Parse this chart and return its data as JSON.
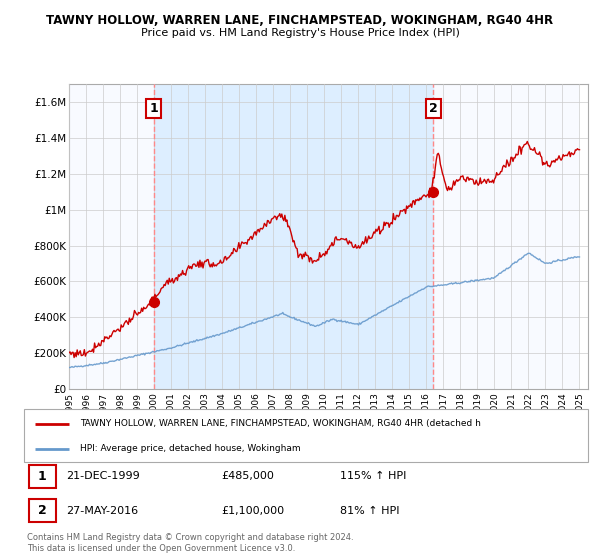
{
  "title": "TAWNY HOLLOW, WARREN LANE, FINCHAMPSTEAD, WOKINGHAM, RG40 4HR",
  "subtitle": "Price paid vs. HM Land Registry's House Price Index (HPI)",
  "ylim": [
    0,
    1700000
  ],
  "xlim_start": 1995.0,
  "xlim_end": 2025.5,
  "yticks": [
    0,
    200000,
    400000,
    600000,
    800000,
    1000000,
    1200000,
    1400000,
    1600000
  ],
  "ytick_labels": [
    "£0",
    "£200K",
    "£400K",
    "£600K",
    "£800K",
    "£1M",
    "£1.2M",
    "£1.4M",
    "£1.6M"
  ],
  "xtick_years": [
    1995,
    1996,
    1997,
    1998,
    1999,
    2000,
    2001,
    2002,
    2003,
    2004,
    2005,
    2006,
    2007,
    2008,
    2009,
    2010,
    2011,
    2012,
    2013,
    2014,
    2015,
    2016,
    2017,
    2018,
    2019,
    2020,
    2021,
    2022,
    2023,
    2024,
    2025
  ],
  "sale1_x": 1999.97,
  "sale1_y": 485000,
  "sale1_label": "1",
  "sale2_x": 2016.4,
  "sale2_y": 1100000,
  "sale2_label": "2",
  "red_line_color": "#cc0000",
  "blue_line_color": "#6699cc",
  "dashed_line_color": "#ff8888",
  "shade_color": "#ddeeff",
  "grid_color": "#cccccc",
  "bg_color": "#ffffff",
  "legend_red_label": "TAWNY HOLLOW, WARREN LANE, FINCHAMPSTEAD, WOKINGHAM, RG40 4HR (detached h",
  "legend_blue_label": "HPI: Average price, detached house, Wokingham",
  "footer_text": "Contains HM Land Registry data © Crown copyright and database right 2024.\nThis data is licensed under the Open Government Licence v3.0.",
  "sale_info": [
    {
      "num": "1",
      "date": "21-DEC-1999",
      "price": "£485,000",
      "hpi": "115% ↑ HPI"
    },
    {
      "num": "2",
      "date": "27-MAY-2016",
      "price": "£1,100,000",
      "hpi": "81% ↑ HPI"
    }
  ],
  "hatch_start": 2025.0
}
